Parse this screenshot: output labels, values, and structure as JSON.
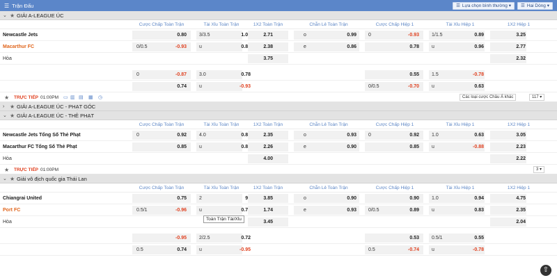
{
  "topbar": {
    "title": "Trận Đấu",
    "sort_label": "Lựa chọn bình thường",
    "filter_label": "Hai Dòng"
  },
  "columns": [
    "Cược Chấp Toàn Trận",
    "Tài Xỉu Toàn Trận",
    "1X2 Toàn Trận",
    "Chẵn Lẻ Toàn Trận",
    "Cược Chấp Hiệp 1",
    "Tài Xỉu Hiệp 1",
    "1X2 Hiệp 1"
  ],
  "sections": [
    {
      "league": "GIẢI A-LEAGUE ÚC",
      "home": "Newcastle Jets",
      "away": "Macarthur FC",
      "draw": "Hòa",
      "rows": [
        [
          "",
          "0.80",
          "3/3.5",
          "1.00",
          "2.71",
          "o",
          "0.99",
          "0",
          "-0.93",
          "1/1.5",
          "0.89",
          "3.25"
        ],
        [
          "0/0.5",
          "-0.93",
          "u",
          "0.85",
          "2.38",
          "e",
          "0.86",
          "",
          "0.78",
          "u",
          "0.96",
          "2.77"
        ],
        [
          "",
          "",
          "",
          "",
          "3.75",
          "",
          "",
          "",
          "",
          "",
          "",
          "2.32"
        ]
      ],
      "extra": [
        [
          "0",
          "-0.87",
          "3.0",
          "0.78",
          "",
          "",
          "",
          "",
          "0.55",
          "1.5",
          "-0.78",
          ""
        ],
        [
          "",
          "0.74",
          "u",
          "-0.93",
          "",
          "",
          "",
          "0/0.5",
          "-0.70",
          "u",
          "0.63",
          ""
        ]
      ],
      "footer": {
        "live": "TRỰC TIẾP",
        "time": "01:00PM",
        "odds_type": "Các loại cược Châu Á khác",
        "more": "117"
      }
    }
  ],
  "collapsed_league": "GIẢI A-LEAGUE ÚC - PHẠT GÓC",
  "section2": {
    "league": "GIẢI A-LEAGUE ÚC - THẺ PHẠT",
    "home": "Newcastle Jets Tổng Số Thẻ Phạt",
    "away": "Macarthur FC Tổng Số Thẻ Phạt",
    "draw": "Hòa",
    "rows": [
      [
        "0",
        "0.92",
        "4.0",
        "0.87",
        "2.35",
        "o",
        "0.93",
        "0",
        "0.92",
        "1.0",
        "0.63",
        "3.05"
      ],
      [
        "",
        "0.85",
        "u",
        "0.88",
        "2.26",
        "e",
        "0.90",
        "",
        "0.85",
        "u",
        "-0.88",
        "2.23"
      ],
      [
        "",
        "",
        "",
        "",
        "4.00",
        "",
        "",
        "",
        "",
        "",
        "",
        "2.22"
      ]
    ],
    "footer": {
      "live": "TRỰC TIẾP",
      "time": "01:00PM",
      "more": "3"
    }
  },
  "section3": {
    "league": "Giải vô địch quốc gia Thái Lan",
    "home": "Chiangrai United",
    "away": "Port FC",
    "draw": "Hòa",
    "rows": [
      [
        "",
        "0.75",
        "2",
        "99",
        "3.85",
        "o",
        "0.90",
        "",
        "0.90",
        "1.0",
        "0.94",
        "4.75"
      ],
      [
        "0.5/1",
        "-0.96",
        "u",
        "0.78",
        "1.74",
        "e",
        "0.93",
        "0/0.5",
        "0.89",
        "u",
        "0.83",
        "2.35"
      ],
      [
        "",
        "",
        "",
        "",
        "3.45",
        "",
        "",
        "",
        "",
        "",
        "",
        "2.04"
      ]
    ],
    "extra": [
      [
        "",
        "-0.95",
        "2/2.5",
        "0.72",
        "",
        "",
        "",
        "",
        "0.53",
        "0.5/1",
        "0.55",
        ""
      ],
      [
        "0.5",
        "0.74",
        "u",
        "-0.95",
        "",
        "",
        "",
        "0.5",
        "-0.74",
        "u",
        "-0.78",
        ""
      ]
    ],
    "tooltip": "Toàn Trận Tài/Xỉu"
  }
}
